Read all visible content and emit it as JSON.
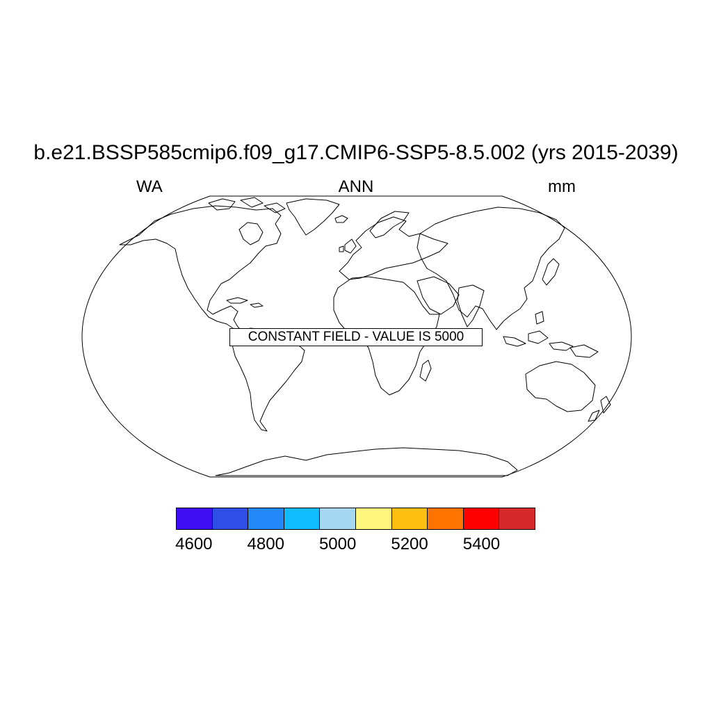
{
  "title": "b.e21.BSSP585cmip6.f09_g17.CMIP6-SSP5-8.5.002 (yrs 2015-2039)",
  "subtitle": {
    "left": "WA",
    "center": "ANN",
    "right": "mm"
  },
  "note": "CONSTANT FIELD - VALUE IS 5000",
  "colorbar": {
    "colors": [
      "#3d0ff0",
      "#2f4ee5",
      "#2387f7",
      "#10bcfb",
      "#a6d7f2",
      "#fff680",
      "#ffbe12",
      "#ff7400",
      "#ff0000",
      "#d42a2b"
    ],
    "levels": [
      4550,
      4650,
      4750,
      4850,
      4950,
      5050,
      5150,
      5250,
      5350,
      5450,
      5550
    ],
    "labels": [
      {
        "value": 4600,
        "text": "4600"
      },
      {
        "value": 4800,
        "text": "4800"
      },
      {
        "value": 5000,
        "text": "5000"
      },
      {
        "value": 5200,
        "text": "5200"
      },
      {
        "value": 5400,
        "text": "5400"
      }
    ]
  },
  "field": {
    "constant_value": 5000
  },
  "projection": "robinson"
}
